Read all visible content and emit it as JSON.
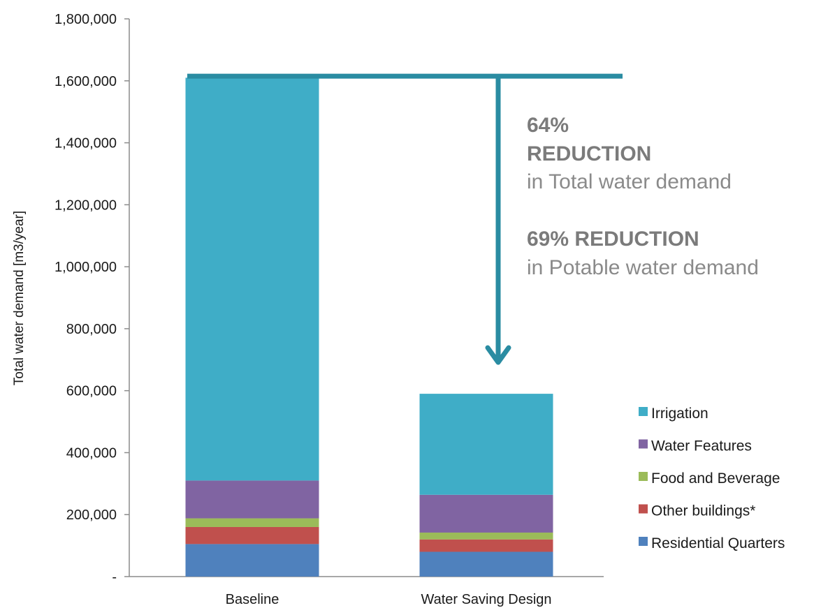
{
  "chart_data": {
    "type": "bar",
    "stacked": true,
    "categories": [
      "Baseline",
      "Water Saving Design"
    ],
    "series": [
      {
        "name": "Residential Quarters",
        "values": [
          105000,
          80000
        ],
        "color": "#4f81bd"
      },
      {
        "name": "Other buildings*",
        "values": [
          55000,
          40000
        ],
        "color": "#c0504d"
      },
      {
        "name": "Food and Beverage",
        "values": [
          28000,
          22000
        ],
        "color": "#9bbb59"
      },
      {
        "name": "Water Features",
        "values": [
          122000,
          122000
        ],
        "color": "#8064a2"
      },
      {
        "name": "Irrigation",
        "values": [
          1300000,
          326000
        ],
        "color": "#3fadc7"
      }
    ],
    "ylabel": "Total water demand [m3/year]",
    "ylim": [
      0,
      1800000
    ],
    "yticks": [
      {
        "value": 0,
        "label": "-"
      },
      {
        "value": 200000,
        "label": "200,000"
      },
      {
        "value": 400000,
        "label": "400,000"
      },
      {
        "value": 600000,
        "label": "600,000"
      },
      {
        "value": 800000,
        "label": "800,000"
      },
      {
        "value": 1000000,
        "label": "1,000,000"
      },
      {
        "value": 1200000,
        "label": "1,200,000"
      },
      {
        "value": 1400000,
        "label": "1,400,000"
      },
      {
        "value": 1600000,
        "label": "1,600,000"
      },
      {
        "value": 1800000,
        "label": "1,800,000"
      }
    ],
    "grid": false,
    "legend_position": "right",
    "legend_order": [
      "Irrigation",
      "Water Features",
      "Food and Beverage",
      "Other buildings*",
      "Residential Quarters"
    ],
    "reference_line": {
      "value": 1615000,
      "color": "#2a8ca2"
    },
    "arrow_target_value": 590000,
    "annotations": {
      "total_pct": "64%",
      "total_word": "REDUCTION",
      "total_desc": "in Total water demand",
      "potable_head": "69% REDUCTION",
      "potable_desc": "in Potable water demand"
    }
  }
}
